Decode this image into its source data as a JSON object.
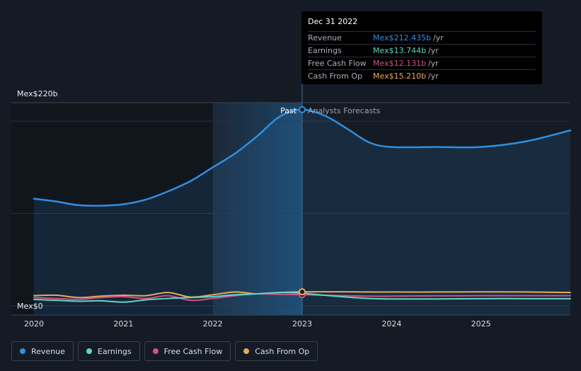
{
  "chart_data": {
    "type": "line",
    "y_top_label": "Mex$220b",
    "y_bottom_label": "Mex$0",
    "ylim": [
      0,
      220
    ],
    "xlim": [
      2020.0,
      2026.0
    ],
    "x_ticks": [
      "2020",
      "2021",
      "2022",
      "2023",
      "2024",
      "2025"
    ],
    "past_label": "Past",
    "forecast_label": "Analysts Forecasts",
    "divider_x": 2023.0,
    "highlight_start": 2022.0,
    "series": [
      {
        "name": "Revenue",
        "color": "#2f8fe0",
        "x": [
          2020.0,
          2020.25,
          2020.5,
          2020.75,
          2021.0,
          2021.25,
          2021.5,
          2021.75,
          2022.0,
          2022.25,
          2022.5,
          2022.75,
          2023.0,
          2023.25,
          2023.5,
          2023.75,
          2024.0,
          2024.5,
          2025.0,
          2025.5,
          2026.0
        ],
        "values": [
          116,
          113,
          109,
          108.5,
          110,
          115,
          124,
          135,
          150,
          165,
          184,
          205,
          212.435,
          206,
          192,
          177,
          172,
          172,
          172,
          178,
          190
        ]
      },
      {
        "name": "Earnings",
        "color": "#5fd6c4",
        "x": [
          2020.0,
          2020.25,
          2020.5,
          2020.75,
          2021.0,
          2021.25,
          2021.5,
          2021.75,
          2022.0,
          2022.25,
          2022.5,
          2022.75,
          2023.0,
          2023.25,
          2023.5,
          2023.75,
          2024.0,
          2024.5,
          2025.0,
          2025.5,
          2026.0
        ],
        "values": [
          7,
          6,
          5,
          5.5,
          4,
          6.5,
          8,
          9,
          10,
          12,
          13,
          14.5,
          13.744,
          11.5,
          9.5,
          8,
          7.5,
          7.5,
          7.8,
          7.8,
          7.8
        ]
      },
      {
        "name": "Free Cash Flow",
        "color": "#d0508a",
        "x": [
          2020.0,
          2020.25,
          2020.5,
          2020.75,
          2021.0,
          2021.25,
          2021.5,
          2021.75,
          2022.0,
          2022.25,
          2022.5,
          2022.75,
          2023.0,
          2023.25,
          2023.5,
          2023.75,
          2024.0,
          2024.5,
          2025.0,
          2025.5,
          2026.0
        ],
        "values": [
          9,
          8,
          7,
          9,
          10,
          8,
          11,
          6,
          8,
          11,
          13,
          12.5,
          12.131,
          11.5,
          11,
          10.5,
          10.5,
          10.8,
          11,
          11,
          11
        ]
      },
      {
        "name": "Cash From Op",
        "color": "#e8a95c",
        "x": [
          2020.0,
          2020.25,
          2020.5,
          2020.75,
          2021.0,
          2021.25,
          2021.5,
          2021.75,
          2022.0,
          2022.25,
          2022.5,
          2022.75,
          2023.0,
          2023.25,
          2023.5,
          2023.75,
          2024.0,
          2024.5,
          2025.0,
          2025.5,
          2026.0
        ],
        "values": [
          11,
          11.5,
          9,
          10.5,
          11.5,
          11,
          14.5,
          9.5,
          12,
          15,
          13,
          14.5,
          15.21,
          15.2,
          15.2,
          15,
          15,
          15,
          15.1,
          15,
          14.5
        ]
      }
    ]
  },
  "tooltip": {
    "date": "Dec 31 2022",
    "unit": "/yr",
    "rows": [
      {
        "name": "Revenue",
        "value": "Mex$212.435b",
        "color": "#2f8fe0"
      },
      {
        "name": "Earnings",
        "value": "Mex$13.744b",
        "color": "#5fd6c4"
      },
      {
        "name": "Free Cash Flow",
        "value": "Mex$12.131b",
        "color": "#d0508a"
      },
      {
        "name": "Cash From Op",
        "value": "Mex$15.210b",
        "color": "#e8a95c"
      }
    ]
  },
  "legend": [
    {
      "name": "Revenue",
      "color": "#2f8fe0"
    },
    {
      "name": "Earnings",
      "color": "#5fd6c4"
    },
    {
      "name": "Free Cash Flow",
      "color": "#d0508a"
    },
    {
      "name": "Cash From Op",
      "color": "#e8a95c"
    }
  ]
}
